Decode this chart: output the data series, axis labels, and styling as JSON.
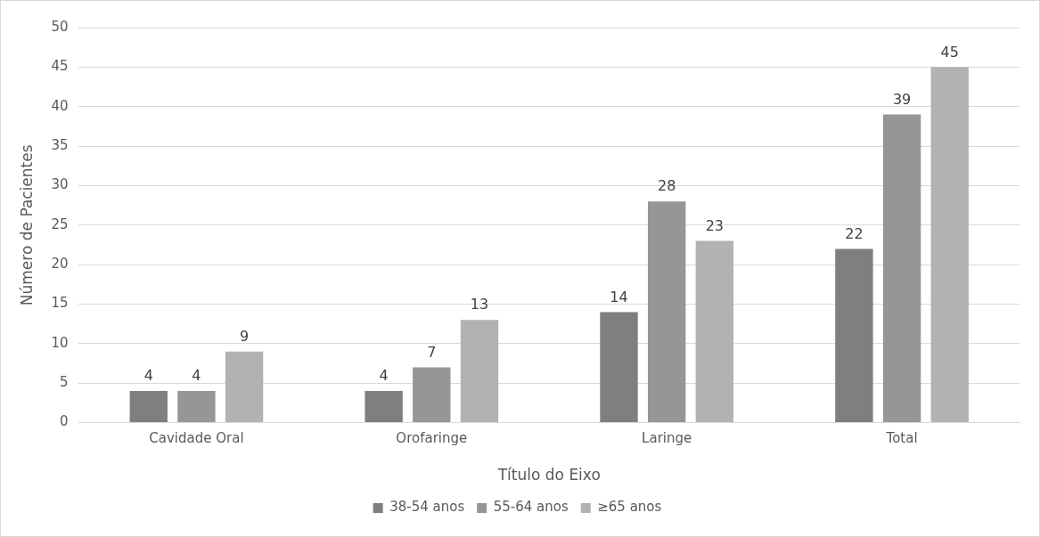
{
  "chart_data": {
    "type": "bar",
    "xlabel": "Título do Eixo",
    "ylabel": "Número de Pacientes",
    "categories": [
      "Cavidade Oral",
      "Orofaringe",
      "Laringe",
      "Total"
    ],
    "series": [
      {
        "name": "38-54 anos",
        "color": "#7f7f7f",
        "values": [
          4,
          4,
          14,
          22
        ]
      },
      {
        "name": "55-64 anos",
        "color": "#969696",
        "values": [
          4,
          7,
          28,
          39
        ]
      },
      {
        "name": "≥65 anos",
        "color": "#b2b2b2",
        "values": [
          9,
          13,
          23,
          45
        ]
      }
    ],
    "ylim": [
      0,
      50
    ],
    "yticks": [
      0,
      5,
      10,
      15,
      20,
      25,
      30,
      35,
      40,
      45,
      50
    ],
    "grid": "y",
    "legend": "bottom",
    "data_labels": true
  }
}
